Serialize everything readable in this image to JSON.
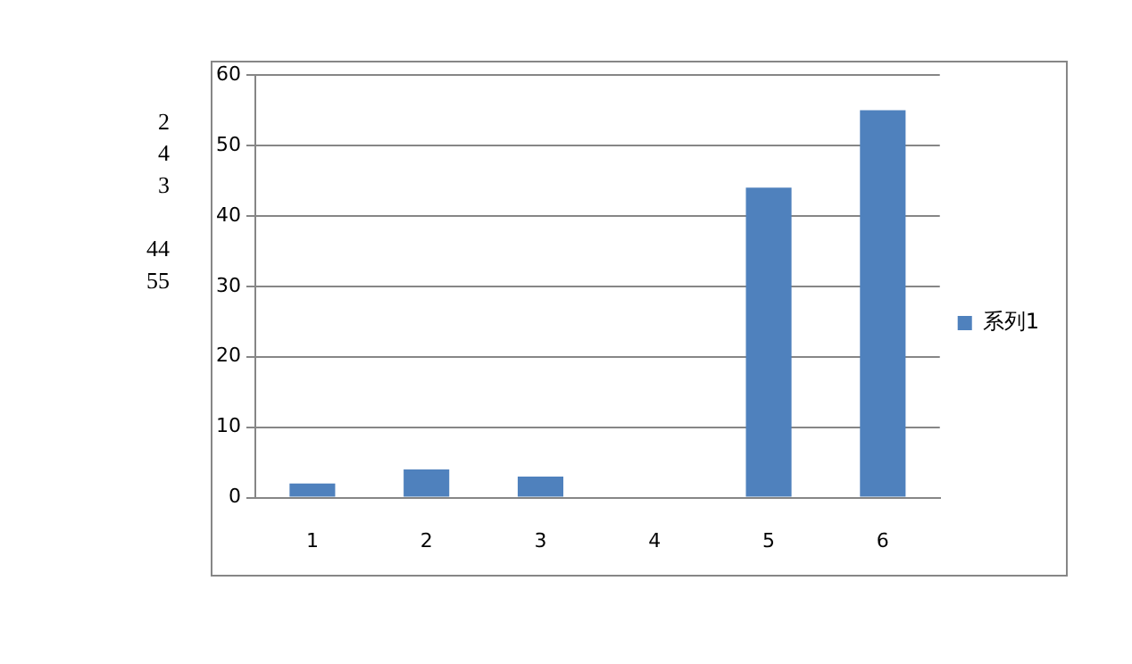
{
  "chart_data": {
    "type": "bar",
    "categories": [
      "1",
      "2",
      "3",
      "4",
      "5",
      "6"
    ],
    "series": [
      {
        "name": "系列1",
        "color": "#4f81bd",
        "values": [
          2,
          4,
          3,
          null,
          44,
          55
        ]
      }
    ],
    "ylim": [
      0,
      60
    ],
    "yticks": [
      0,
      10,
      20,
      30,
      40,
      50,
      60
    ],
    "grid": "y",
    "legend": "right",
    "annotations": [
      "2",
      "4",
      "3",
      "44",
      "55"
    ]
  }
}
